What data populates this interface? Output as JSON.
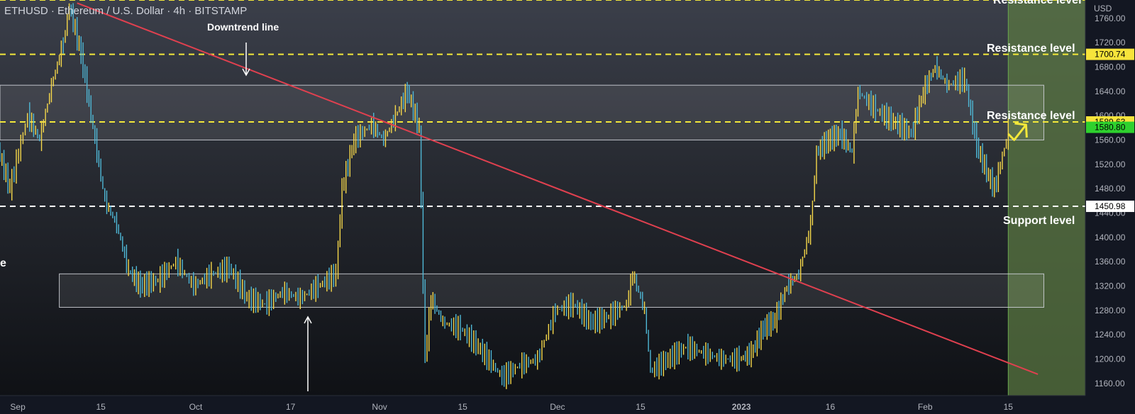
{
  "chart_title": "ETHUSD · Ethereum / U.S. Dollar · 4h · BITSTAMP",
  "currency_label": "USD",
  "colors": {
    "candle_up": "#f6d84a",
    "candle_down": "#4fb8d6",
    "downtrend": "#e0404f",
    "resistance": "#f3e83a",
    "support": "#ffffff",
    "forecast_zone": "#5c7a42",
    "price_badge_yellow": "#f7e43b",
    "price_badge_green": "#2ed12e"
  },
  "annotations": {
    "downtrend_line": "Downtrend line",
    "resistance_top": "Resistance level",
    "resistance_upper": "Resistance level",
    "resistance_mid": "Resistance level",
    "support": "Support level",
    "left_edge": "e"
  },
  "price_badges": {
    "r1": "1700.74",
    "r2": "1589.63",
    "current": "1580.80",
    "support": "1450.98"
  },
  "chart_data": {
    "type": "line",
    "title": "ETHUSD · Ethereum / U.S. Dollar · 4h · BITSTAMP",
    "ylabel": "USD",
    "ylim": [
      1140,
      1790
    ],
    "y_ticks": [
      "1760.00",
      "1720.00",
      "1680.00",
      "1640.00",
      "1600.00",
      "1560.00",
      "1520.00",
      "1480.00",
      "1440.00",
      "1400.00",
      "1360.00",
      "1320.00",
      "1280.00",
      "1240.00",
      "1200.00",
      "1160.00"
    ],
    "x_ticks": [
      {
        "label": "Sep",
        "date": "2022-09-01"
      },
      {
        "label": "15",
        "date": "2022-09-15"
      },
      {
        "label": "Oct",
        "date": "2022-10-01"
      },
      {
        "label": "17",
        "date": "2022-10-17"
      },
      {
        "label": "Nov",
        "date": "2022-11-01"
      },
      {
        "label": "15",
        "date": "2022-11-15"
      },
      {
        "label": "Dec",
        "date": "2022-12-01"
      },
      {
        "label": "15",
        "date": "2022-12-15"
      },
      {
        "label": "2023",
        "date": "2023-01-01"
      },
      {
        "label": "16",
        "date": "2023-01-16"
      },
      {
        "label": "Feb",
        "date": "2023-02-01"
      },
      {
        "label": "15",
        "date": "2023-02-15"
      }
    ],
    "series": [
      {
        "price": [
          [
            "2022-08-29",
            1545
          ],
          [
            "2022-08-31",
            1480
          ],
          [
            "2022-09-03",
            1600
          ],
          [
            "2022-09-05",
            1560
          ],
          [
            "2022-09-07",
            1650
          ],
          [
            "2022-09-09",
            1720
          ],
          [
            "2022-09-10",
            1780
          ],
          [
            "2022-09-12",
            1700
          ],
          [
            "2022-09-14",
            1580
          ],
          [
            "2022-09-16",
            1460
          ],
          [
            "2022-09-18",
            1420
          ],
          [
            "2022-09-20",
            1345
          ],
          [
            "2022-09-22",
            1320
          ],
          [
            "2022-09-25",
            1330
          ],
          [
            "2022-09-28",
            1360
          ],
          [
            "2022-10-01",
            1320
          ],
          [
            "2022-10-04",
            1340
          ],
          [
            "2022-10-07",
            1350
          ],
          [
            "2022-10-10",
            1300
          ],
          [
            "2022-10-13",
            1290
          ],
          [
            "2022-10-16",
            1310
          ],
          [
            "2022-10-19",
            1300
          ],
          [
            "2022-10-22",
            1320
          ],
          [
            "2022-10-25",
            1340
          ],
          [
            "2022-10-26",
            1480
          ],
          [
            "2022-10-28",
            1560
          ],
          [
            "2022-10-31",
            1585
          ],
          [
            "2022-11-02",
            1560
          ],
          [
            "2022-11-04",
            1600
          ],
          [
            "2022-11-06",
            1640
          ],
          [
            "2022-11-08",
            1580
          ],
          [
            "2022-11-09",
            1200
          ],
          [
            "2022-11-10",
            1300
          ],
          [
            "2022-11-12",
            1260
          ],
          [
            "2022-11-15",
            1250
          ],
          [
            "2022-11-18",
            1220
          ],
          [
            "2022-11-22",
            1170
          ],
          [
            "2022-11-25",
            1190
          ],
          [
            "2022-11-28",
            1200
          ],
          [
            "2022-12-01",
            1280
          ],
          [
            "2022-12-04",
            1290
          ],
          [
            "2022-12-07",
            1260
          ],
          [
            "2022-12-10",
            1270
          ],
          [
            "2022-12-13",
            1290
          ],
          [
            "2022-12-14",
            1340
          ],
          [
            "2022-12-16",
            1280
          ],
          [
            "2022-12-17",
            1180
          ],
          [
            "2022-12-20",
            1200
          ],
          [
            "2022-12-23",
            1220
          ],
          [
            "2022-12-26",
            1210
          ],
          [
            "2022-12-29",
            1200
          ],
          [
            "2023-01-01",
            1200
          ],
          [
            "2023-01-03",
            1210
          ],
          [
            "2023-01-05",
            1250
          ],
          [
            "2023-01-07",
            1265
          ],
          [
            "2023-01-09",
            1320
          ],
          [
            "2023-01-11",
            1340
          ],
          [
            "2023-01-13",
            1420
          ],
          [
            "2023-01-14",
            1540
          ],
          [
            "2023-01-16",
            1560
          ],
          [
            "2023-01-18",
            1570
          ],
          [
            "2023-01-20",
            1540
          ],
          [
            "2023-01-21",
            1640
          ],
          [
            "2023-01-24",
            1610
          ],
          [
            "2023-01-27",
            1590
          ],
          [
            "2023-01-30",
            1570
          ],
          [
            "2023-02-01",
            1640
          ],
          [
            "2023-02-03",
            1680
          ],
          [
            "2023-02-05",
            1650
          ],
          [
            "2023-02-08",
            1660
          ],
          [
            "2023-02-10",
            1550
          ],
          [
            "2023-02-12",
            1500
          ],
          [
            "2023-02-13",
            1480
          ],
          [
            "2023-02-15",
            1560
          ],
          [
            "2023-02-15",
            1580.8
          ]
        ]
      },
      {
        "downtrend_line": [
          [
            "2022-09-11",
            1785
          ],
          [
            "2023-02-20",
            1175
          ]
        ]
      }
    ],
    "levels": {
      "resistance_top": 1790,
      "resistance_1": 1700.74,
      "resistance_2": 1589.63,
      "support": 1450.98
    },
    "zones": [
      {
        "from_date": "2022-08-29",
        "to_date": "2023-02-21",
        "low": 1560,
        "high": 1650
      },
      {
        "from_date": "2022-09-08",
        "to_date": "2023-02-21",
        "low": 1285,
        "high": 1340
      }
    ],
    "forecast_region_start": "2023-02-15",
    "projection_arrow": [
      [
        "2023-02-15",
        1570
      ],
      [
        "2023-02-16",
        1560
      ],
      [
        "2023-02-18",
        1585
      ]
    ],
    "current_price": 1580.8
  }
}
